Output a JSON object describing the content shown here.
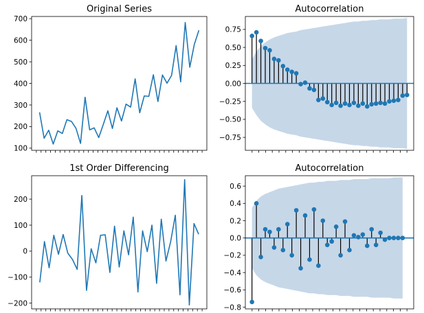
{
  "chart_data": [
    {
      "type": "line",
      "title": "Original Series",
      "x": [
        1,
        2,
        3,
        4,
        5,
        6,
        7,
        8,
        9,
        10,
        11,
        12,
        13,
        14,
        15,
        16,
        17,
        18,
        19,
        20,
        21,
        22,
        23,
        24,
        25,
        26,
        27,
        28,
        29,
        30,
        31,
        32,
        33,
        34,
        35,
        36
      ],
      "values": [
        266,
        146,
        183,
        119,
        180,
        168,
        232,
        224,
        192,
        122,
        336,
        185,
        194,
        149,
        210,
        273,
        191,
        287,
        226,
        304,
        290,
        421,
        264,
        342,
        340,
        440,
        316,
        439,
        401,
        437,
        575,
        407,
        682,
        475,
        581,
        646
      ],
      "ylim": [
        90,
        710
      ],
      "yticks": [
        100,
        200,
        300,
        400,
        500,
        600,
        700
      ],
      "ytick_labels": [
        "100",
        "200",
        "300",
        "400",
        "500",
        "600",
        "700"
      ],
      "color": "#1f77b4"
    },
    {
      "type": "stem",
      "title": "Autocorrelation",
      "lags": [
        0,
        1,
        2,
        3,
        4,
        5,
        6,
        7,
        8,
        9,
        10,
        11,
        12,
        13,
        14,
        15,
        16,
        17,
        18,
        19,
        20,
        21,
        22,
        23,
        24,
        25,
        26,
        27,
        28,
        29,
        30,
        31,
        32,
        33,
        34,
        35
      ],
      "values": [
        0.66,
        0.71,
        0.59,
        0.49,
        0.46,
        0.34,
        0.32,
        0.24,
        0.19,
        0.16,
        0.14,
        -0.01,
        0.01,
        -0.07,
        -0.09,
        -0.23,
        -0.21,
        -0.26,
        -0.3,
        -0.27,
        -0.31,
        -0.28,
        -0.3,
        -0.27,
        -0.31,
        -0.28,
        -0.32,
        -0.29,
        -0.28,
        -0.27,
        -0.28,
        -0.25,
        -0.24,
        -0.23,
        -0.17,
        -0.16
      ],
      "confint_upper": [
        0.34,
        0.44,
        0.52,
        0.57,
        0.61,
        0.64,
        0.66,
        0.68,
        0.7,
        0.71,
        0.72,
        0.74,
        0.75,
        0.76,
        0.77,
        0.78,
        0.79,
        0.8,
        0.81,
        0.82,
        0.83,
        0.84,
        0.85,
        0.86,
        0.86,
        0.87,
        0.87,
        0.88,
        0.88,
        0.89,
        0.89,
        0.89,
        0.9,
        0.9,
        0.9,
        0.91
      ],
      "ylim": [
        -0.93,
        0.93
      ],
      "yticks": [
        -0.75,
        -0.5,
        -0.25,
        0,
        0.25,
        0.5,
        0.75
      ],
      "ytick_labels": [
        "−0.75",
        "−0.50",
        "−0.25",
        "0.00",
        "0.25",
        "0.50",
        "0.75"
      ],
      "xlim": [
        -1.5,
        36.5
      ],
      "color": "#1f77b4",
      "stem_color": "#000000",
      "band_color": "#c6d7e8"
    },
    {
      "type": "line",
      "title": "1st Order Differencing",
      "x": [
        1,
        2,
        3,
        4,
        5,
        6,
        7,
        8,
        9,
        10,
        11,
        12,
        13,
        14,
        15,
        16,
        17,
        18,
        19,
        20,
        21,
        22,
        23,
        24,
        25,
        26,
        27,
        28,
        29,
        30,
        31,
        32,
        33,
        34,
        35
      ],
      "values": [
        -120,
        37,
        -64,
        61,
        -12,
        64,
        -8,
        -32,
        -70,
        214,
        -151,
        9,
        -45,
        61,
        63,
        -82,
        96,
        -61,
        78,
        -14,
        131,
        -157,
        78,
        -2,
        100,
        -124,
        123,
        -38,
        36,
        138,
        -168,
        275,
        -207,
        106,
        65
      ],
      "ylim": [
        -222,
        290
      ],
      "yticks": [
        -200,
        -100,
        0,
        100,
        200
      ],
      "ytick_labels": [
        "−200",
        "−100",
        "0",
        "100",
        "200"
      ],
      "color": "#1f77b4"
    },
    {
      "type": "stem",
      "title": "Autocorrelation",
      "lags": [
        0,
        1,
        2,
        3,
        4,
        5,
        6,
        7,
        8,
        9,
        10,
        11,
        12,
        13,
        14,
        15,
        16,
        17,
        18,
        19,
        20,
        21,
        22,
        23,
        24,
        25,
        26,
        27,
        28,
        29,
        30,
        31,
        32,
        33,
        34
      ],
      "values": [
        -0.74,
        0.4,
        -0.22,
        0.1,
        0.07,
        -0.11,
        0.1,
        -0.14,
        0.16,
        -0.2,
        0.32,
        -0.35,
        0.26,
        -0.25,
        0.33,
        -0.32,
        0.2,
        -0.08,
        -0.04,
        0.13,
        -0.2,
        0.19,
        -0.14,
        0.03,
        0.01,
        0.04,
        -0.09,
        0.1,
        -0.08,
        0.06,
        -0.02,
        0.0,
        0.0,
        0.0,
        0.0
      ],
      "confint_upper": [
        0.35,
        0.43,
        0.48,
        0.51,
        0.53,
        0.55,
        0.57,
        0.58,
        0.59,
        0.6,
        0.61,
        0.62,
        0.63,
        0.64,
        0.64,
        0.65,
        0.65,
        0.66,
        0.66,
        0.66,
        0.67,
        0.67,
        0.67,
        0.68,
        0.68,
        0.68,
        0.68,
        0.69,
        0.69,
        0.69,
        0.69,
        0.69,
        0.7,
        0.7,
        0.7
      ],
      "ylim": [
        -0.82,
        0.72
      ],
      "yticks": [
        -0.8,
        -0.6,
        -0.4,
        -0.2,
        0,
        0.2,
        0.4,
        0.6
      ],
      "ytick_labels": [
        "−0.8",
        "−0.6",
        "−0.4",
        "−0.2",
        "0.0",
        "0.2",
        "0.4",
        "0.6"
      ],
      "xlim": [
        -1.5,
        36.5
      ],
      "color": "#1f77b4",
      "stem_color": "#000000",
      "band_color": "#c6d7e8"
    }
  ]
}
